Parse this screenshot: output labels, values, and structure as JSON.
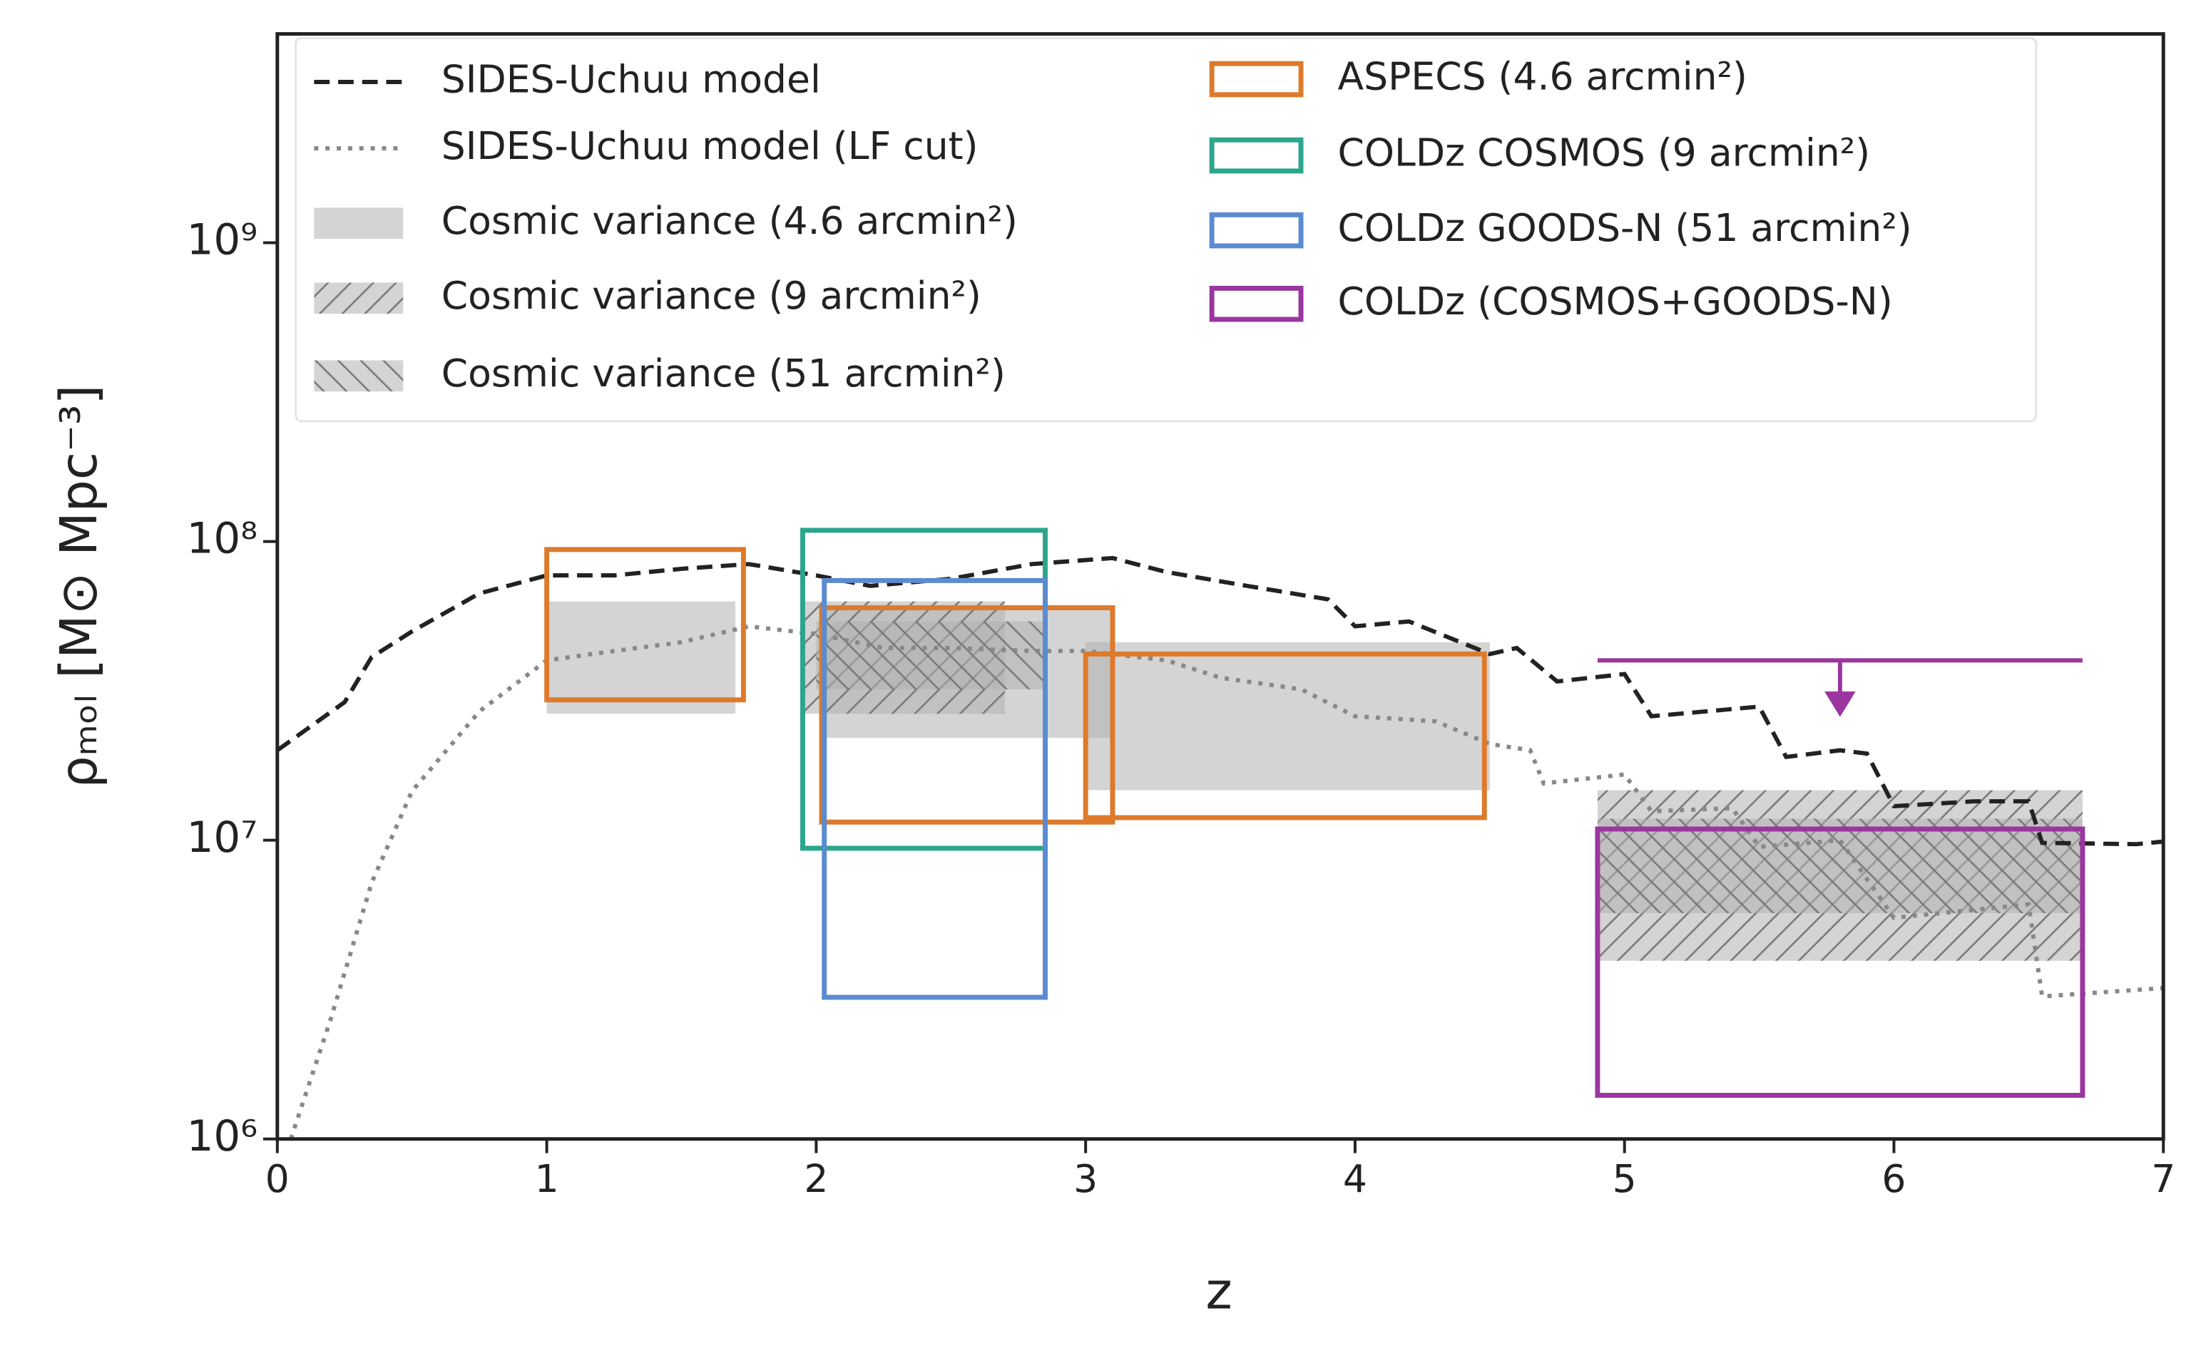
{
  "chart_data": {
    "type": "line",
    "x_label": "z",
    "y_label": "ρₘₒₗ [M⊙ Mpc⁻³]",
    "xlim": [
      0,
      7
    ],
    "xticks": [
      0,
      1,
      2,
      3,
      4,
      5,
      6,
      7
    ],
    "ylim": [
      1000000,
      5000000000
    ],
    "log_y": true,
    "yticks": [
      {
        "value": 1000000,
        "label": "10⁶"
      },
      {
        "value": 10000000,
        "label": "10⁷"
      },
      {
        "value": 100000000,
        "label": "10⁸"
      },
      {
        "value": 1000000000,
        "label": "10⁹"
      }
    ],
    "legend": "upper left",
    "series": [
      {
        "name": "SIDES-Uchuu model",
        "color": "#222222",
        "style": "dashed",
        "x": [
          0,
          0.25,
          0.35,
          0.5,
          0.75,
          1.0,
          1.25,
          1.5,
          1.75,
          2.0,
          2.2,
          2.5,
          2.8,
          3.1,
          3.3,
          3.6,
          3.9,
          4.0,
          4.2,
          4.5,
          4.6,
          4.75,
          5.0,
          5.1,
          5.5,
          5.6,
          5.8,
          5.9,
          6.0,
          6.3,
          6.5,
          6.55,
          6.9,
          7.0
        ],
        "values": [
          20000000,
          29000000,
          41000000,
          50000000,
          67000000,
          77000000,
          77000000,
          81000000,
          84000000,
          77000000,
          71000000,
          75000000,
          84000000,
          88000000,
          79000000,
          71000000,
          64000000,
          52000000,
          54000000,
          42000000,
          44000000,
          34000000,
          36000000,
          26000000,
          28000000,
          19000000,
          20000000,
          19500000,
          13000000,
          13500000,
          13500000,
          9800000,
          9700000,
          9900000
        ]
      },
      {
        "name": "SIDES-Uchuu model (LF cut)",
        "color": "#888888",
        "style": "dotted",
        "x": [
          0.05,
          0.2,
          0.35,
          0.5,
          0.75,
          1.0,
          1.25,
          1.5,
          1.75,
          2.0,
          2.25,
          2.5,
          2.8,
          3.0,
          3.3,
          3.5,
          3.8,
          4.0,
          4.3,
          4.5,
          4.65,
          4.7,
          5.0,
          5.1,
          5.4,
          5.5,
          5.8,
          6.0,
          6.5,
          6.55,
          7.0
        ],
        "values": [
          1000000,
          2550000,
          7200000,
          14600000,
          27000000,
          40000000,
          43000000,
          46000000,
          52000000,
          49000000,
          44000000,
          44000000,
          43000000,
          43000000,
          40000000,
          35000000,
          32000000,
          26000000,
          25000000,
          21000000,
          20000000,
          15500000,
          16600000,
          12500000,
          12800000,
          9500000,
          10000000,
          5500000,
          6100000,
          3000000,
          3200000
        ]
      }
    ],
    "bands": [
      {
        "name": "Cosmic variance (4.6 arcmin²)",
        "color": "#b0b0b0",
        "hatch": "none",
        "regions": [
          {
            "x": [
              1,
              1.7
            ],
            "y": [
              26500000,
              63000000
            ]
          },
          {
            "x": [
              2.02,
              3.1
            ],
            "y": [
              22000000,
              60000000
            ]
          },
          {
            "x": [
              3,
              4.5
            ],
            "y": [
              14700000,
              46000000
            ]
          }
        ]
      },
      {
        "name": "Cosmic variance (9 arcmin²)",
        "color": "#b0b0b0",
        "hatch": "forward",
        "regions": [
          {
            "x": [
              1.95,
              2.7
            ],
            "y": [
              26500000,
              63000000
            ]
          },
          {
            "x": [
              4.9,
              6.7
            ],
            "y": [
              3950000,
              14700000
            ]
          }
        ]
      },
      {
        "name": "Cosmic variance (51 arcmin²)",
        "color": "#b0b0b0",
        "hatch": "back",
        "regions": [
          {
            "x": [
              2.0,
              2.85
            ],
            "y": [
              32000000,
              54000000
            ]
          },
          {
            "x": [
              4.9,
              6.7
            ],
            "y": [
              5700000,
              11800000
            ]
          }
        ]
      }
    ],
    "boxes": [
      {
        "name": "ASPECS (4.6 arcmin²)",
        "color": "#dd7a2b",
        "regions": [
          {
            "x": [
              1,
              1.73
            ],
            "y": [
              29500000,
              94000000
            ]
          },
          {
            "x": [
              2.02,
              3.1
            ],
            "y": [
              11500000,
              60000000
            ]
          },
          {
            "x": [
              3.0,
              4.48
            ],
            "y": [
              11900000,
              42000000
            ]
          }
        ]
      },
      {
        "name": "COLDz COSMOS (9 arcmin²)",
        "color": "#2ca58d",
        "regions": [
          {
            "x": [
              1.95,
              2.85
            ],
            "y": [
              9400000,
              109000000
            ]
          }
        ]
      },
      {
        "name": "COLDz GOODS-N (51 arcmin²)",
        "color": "#5b8bd0",
        "regions": [
          {
            "x": [
              2.03,
              2.85
            ],
            "y": [
              2980000,
              74000000
            ]
          }
        ]
      },
      {
        "name": "COLDz (COSMOS+GOODS-N)",
        "color": "#9b35a0",
        "regions": [
          {
            "x": [
              4.9,
              6.7
            ],
            "y": [
              1400000,
              10900000
            ]
          }
        ]
      }
    ],
    "upper_limit": {
      "x": [
        4.9,
        6.7
      ],
      "value": 40000000,
      "arrow_x": 5.8,
      "color": "#9b35a0"
    }
  }
}
